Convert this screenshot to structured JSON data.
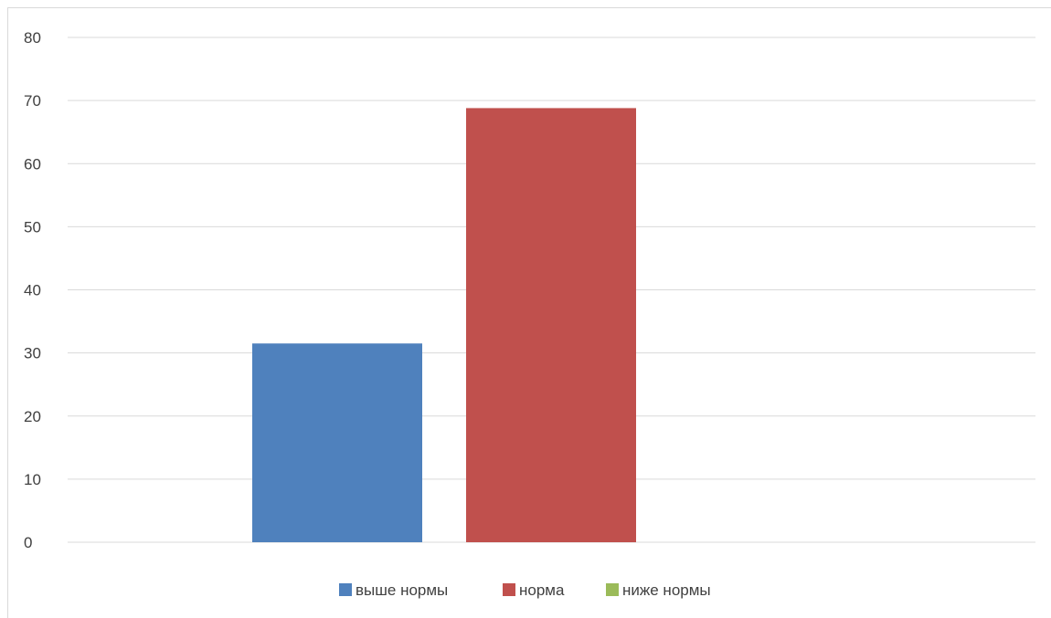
{
  "chart_data": {
    "type": "bar",
    "title": "",
    "xlabel": "",
    "ylabel": "",
    "ylim": [
      0,
      80
    ],
    "y_ticks": [
      0,
      10,
      20,
      30,
      40,
      50,
      60,
      70,
      80
    ],
    "grid": true,
    "legend_position": "bottom",
    "categories": [
      ""
    ],
    "series": [
      {
        "name": "выше нормы",
        "values": [
          31.5
        ],
        "color": "#4f81bd"
      },
      {
        "name": "норма",
        "values": [
          68.8
        ],
        "color": "#c0504d"
      },
      {
        "name": "ниже нормы",
        "values": [
          0
        ],
        "color": "#9bbb59"
      }
    ]
  },
  "colors": {
    "gridline": "#d9d9d9",
    "axis_text": "#404040"
  }
}
